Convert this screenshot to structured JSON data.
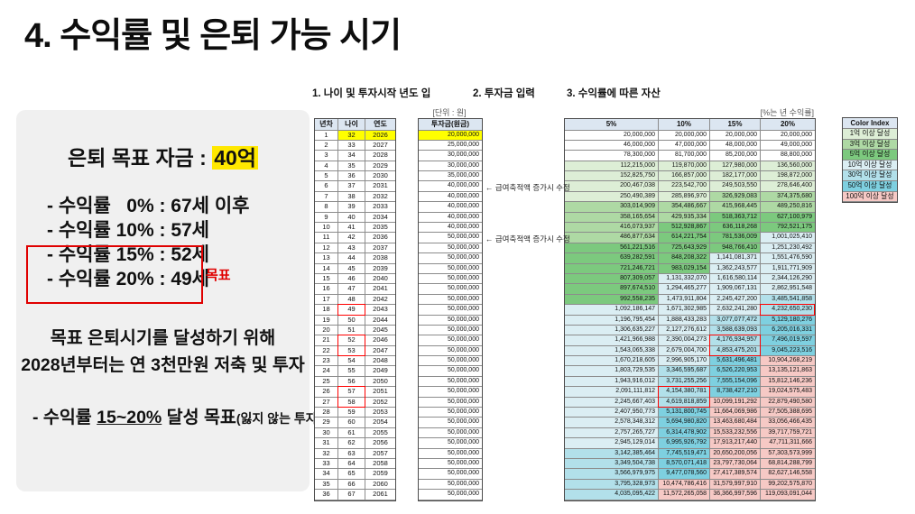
{
  "title": "4. 수익률 및 은퇴 가능 시기",
  "left_panel": {
    "target": {
      "label": "은퇴 목표 자금 : ",
      "highlight": "40억"
    },
    "rate_lines": [
      "- 수익률   0% : 67세 이후",
      "- 수익률 10% : 57세",
      "- 수익률 15% : 52세",
      "- 수익률 20% : 49세"
    ],
    "goal_label": "목표",
    "plan_lines": [
      "목표 은퇴시기를 달성하기 위해",
      "2028년부터는 연 3천만원 저축 및 투자"
    ],
    "strategy": {
      "prefix": "- 수익률 ",
      "underlined": "15~20%",
      "suffix": " 달성 목표",
      "paren": "(잃지 않는 투자)"
    }
  },
  "section_labels": {
    "s1": "1. 나이 및 투자시작 년도 입",
    "s2": "2. 투자금 입력",
    "s3": "3. 수익률에 따른 자산"
  },
  "age_table": {
    "headers": [
      "년차",
      "나이",
      "연도"
    ],
    "rows": [
      [
        1,
        32,
        2026
      ],
      [
        2,
        33,
        2027
      ],
      [
        3,
        34,
        2028
      ],
      [
        4,
        35,
        2029
      ],
      [
        5,
        36,
        2030
      ],
      [
        6,
        37,
        2031
      ],
      [
        7,
        38,
        2032
      ],
      [
        8,
        39,
        2033
      ],
      [
        9,
        40,
        2034
      ],
      [
        10,
        41,
        2035
      ],
      [
        11,
        42,
        2036
      ],
      [
        12,
        43,
        2037
      ],
      [
        13,
        44,
        2038
      ],
      [
        14,
        45,
        2039
      ],
      [
        15,
        46,
        2040
      ],
      [
        16,
        47,
        2041
      ],
      [
        17,
        48,
        2042
      ],
      [
        18,
        49,
        2043
      ],
      [
        19,
        50,
        2044
      ],
      [
        20,
        51,
        2045
      ],
      [
        21,
        52,
        2046
      ],
      [
        22,
        53,
        2047
      ],
      [
        23,
        54,
        2048
      ],
      [
        24,
        55,
        2049
      ],
      [
        25,
        56,
        2050
      ],
      [
        26,
        57,
        2051
      ],
      [
        27,
        58,
        2052
      ],
      [
        28,
        59,
        2053
      ],
      [
        29,
        60,
        2054
      ],
      [
        30,
        61,
        2055
      ],
      [
        31,
        62,
        2056
      ],
      [
        32,
        63,
        2057
      ],
      [
        33,
        64,
        2058
      ],
      [
        34,
        65,
        2059
      ],
      [
        35,
        66,
        2060
      ],
      [
        36,
        67,
        2061
      ]
    ],
    "highlight_first_row": true,
    "red_groups": [
      [
        18
      ],
      [
        21,
        22
      ],
      [
        26,
        27
      ]
    ]
  },
  "investment_table": {
    "unit_label": "[단위 : 원]",
    "header": "투자금(원금)",
    "values": [
      20000000,
      25000000,
      30000000,
      30000000,
      35000000,
      40000000,
      40000000,
      40000000,
      40000000,
      40000000,
      50000000,
      50000000,
      50000000,
      50000000,
      50000000,
      50000000,
      50000000,
      50000000,
      50000000,
      50000000,
      50000000,
      50000000,
      50000000,
      50000000,
      50000000,
      50000000,
      50000000,
      50000000,
      50000000,
      50000000,
      50000000,
      50000000,
      50000000,
      50000000,
      50000000,
      50000000
    ],
    "highlight_first_row": true,
    "annotations": [
      {
        "row": 6,
        "text": "← 급여축적액 증가시 수정"
      },
      {
        "row": 11,
        "text": "← 급여축적액 증가시 수정"
      }
    ]
  },
  "asset_table": {
    "note": "[%는 년 수익률]",
    "series": [
      {
        "name": "5%",
        "values": [
          20000000,
          46000000,
          78300000,
          112215000,
          152825750,
          200467038,
          250490389,
          303014909,
          358165654,
          416073937,
          486877634,
          561221516,
          639282591,
          721246721,
          807309057,
          897674510,
          992558235,
          1092186147,
          1196795454,
          1306635227,
          1421966988,
          1543065338,
          1670218605,
          1803729535,
          1943916012,
          2091111812,
          2245667403,
          2407950773,
          2578348312,
          2757265727,
          2945129014,
          3142385464,
          3349504738,
          3566979975,
          3795328973,
          4035095422
        ]
      },
      {
        "name": "10%",
        "values": [
          20000000,
          47000000,
          81700000,
          119870000,
          166857000,
          223542700,
          285896970,
          354486667,
          429935334,
          512928867,
          614221754,
          725643929,
          848208322,
          983029154,
          1131332070,
          1294465277,
          1473911804,
          1671302985,
          1888433283,
          2127276612,
          2390004273,
          2679004700,
          2996905170,
          3346595687,
          3731255256,
          4154380781,
          4619818859,
          5131800745,
          5694980820,
          6314478902,
          6995926792,
          7745519471,
          8570071418,
          9477078560,
          10474786416,
          11572265058
        ]
      },
      {
        "name": "15%",
        "values": [
          20000000,
          48000000,
          85200000,
          127980000,
          182177000,
          249503550,
          326929083,
          415968445,
          518363712,
          636118268,
          781536009,
          948766410,
          1141081371,
          1362243577,
          1616580114,
          1909067131,
          2245427200,
          2632241280,
          3077077472,
          3588639093,
          4176934957,
          4853475201,
          5631496481,
          6526220953,
          7555154096,
          8738427210,
          10099191292,
          11664069986,
          13463680484,
          15533232556,
          17913217440,
          20650200056,
          23797730064,
          27417389574,
          31579997910,
          36366997596
        ]
      },
      {
        "name": "20%",
        "values": [
          20000000,
          49000000,
          88800000,
          136560000,
          198872000,
          278646400,
          374375680,
          489250816,
          627100979,
          792521175,
          1001025410,
          1251230492,
          1551476590,
          1911771909,
          2344126290,
          2862951548,
          3485541858,
          4232650230,
          5129180276,
          6205016331,
          7496019597,
          9045223516,
          10904268219,
          13135121863,
          15812146236,
          19024575483,
          22879490580,
          27505388695,
          33056466435,
          39717759721,
          47711311666,
          57303573999,
          68814288799,
          82627146558,
          99202575870,
          119093091044
        ]
      }
    ],
    "red_groups": [
      {
        "series": 3,
        "rows": [
          18
        ]
      },
      {
        "series": 2,
        "rows": [
          21,
          22
        ]
      },
      {
        "series": 1,
        "rows": [
          26,
          27
        ]
      }
    ]
  },
  "color_index": {
    "header": "Color Index",
    "entries": [
      {
        "label": "1억 이상 달성",
        "color": "#ddeed6",
        "threshold": 100000000
      },
      {
        "label": "3억 이상 달성",
        "color": "#aed9a4",
        "threshold": 300000000
      },
      {
        "label": "5억 이상 달성",
        "color": "#7cc97e",
        "threshold": 500000000
      },
      {
        "label": "10억 이상 달성",
        "color": "#dbeef3",
        "threshold": 1000000000
      },
      {
        "label": "30억 이상 달성",
        "color": "#b2e0ea",
        "threshold": 3000000000
      },
      {
        "label": "50억 이상 달성",
        "color": "#7ed0e0",
        "threshold": 5000000000
      },
      {
        "label": "100억 이상 달성",
        "color": "#f6c9c5",
        "threshold": 10000000000
      }
    ]
  },
  "colors": {
    "accent_red": "#e00000",
    "highlight_yellow": "#ffff00",
    "header_blue": "#dce6f1"
  }
}
